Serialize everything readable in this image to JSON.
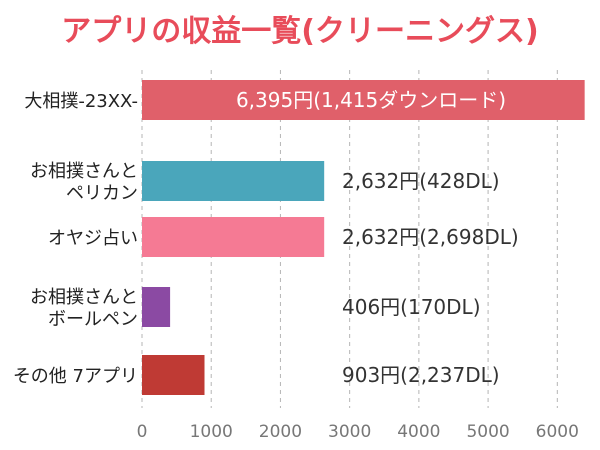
{
  "chart_data": {
    "type": "bar",
    "orientation": "horizontal",
    "title": "アプリの収益一覧(クリーニングス)",
    "xlabel": "",
    "ylabel": "",
    "xlim": [
      0,
      6400
    ],
    "x_ticks": [
      "0",
      "1000",
      "2000",
      "3000",
      "4000",
      "5000",
      "6000"
    ],
    "grid": "vertical-dashed",
    "legend": "none",
    "categories": [
      [
        "大相撲-23XX-"
      ],
      [
        "お相撲さんと",
        "ペリカン"
      ],
      [
        "オヤジ占い"
      ],
      [
        "お相撲さんと",
        "ボールペン"
      ],
      [
        "その他 7アプリ"
      ]
    ],
    "values": [
      6395,
      2632,
      2632,
      406,
      903
    ],
    "data_labels": [
      "6,395円(1,415ダウンロード)",
      "2,632円(428DL)",
      "2,632円(2,698DL)",
      "406円(170DL)",
      "903円(2,237DL)"
    ],
    "colors": [
      "#e0606a",
      "#4aa6bb",
      "#f57a94",
      "#8b4aa3",
      "#bf3a34"
    ],
    "title_color": "#e84c5a"
  }
}
